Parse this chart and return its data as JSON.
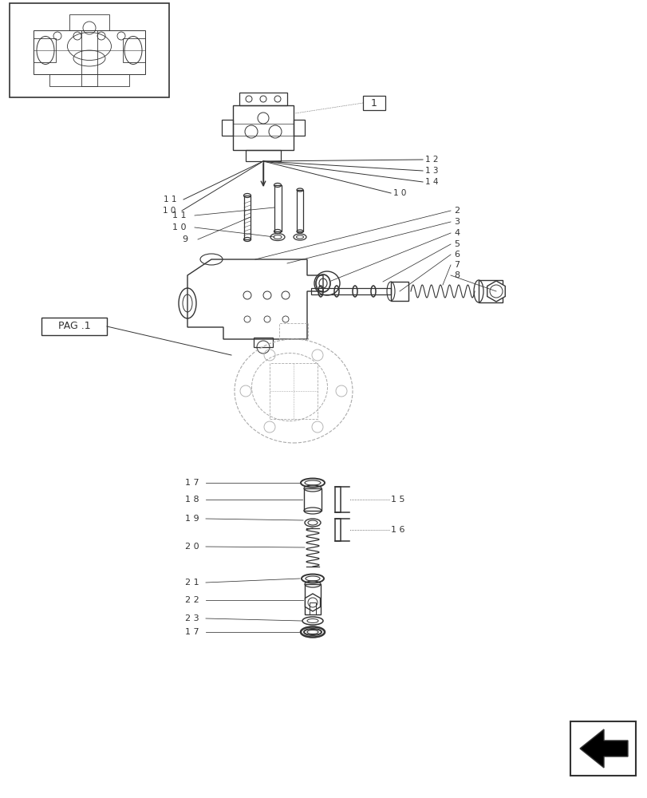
{
  "bg_color": "#ffffff",
  "line_color": "#333333",
  "label_color": "#333333"
}
